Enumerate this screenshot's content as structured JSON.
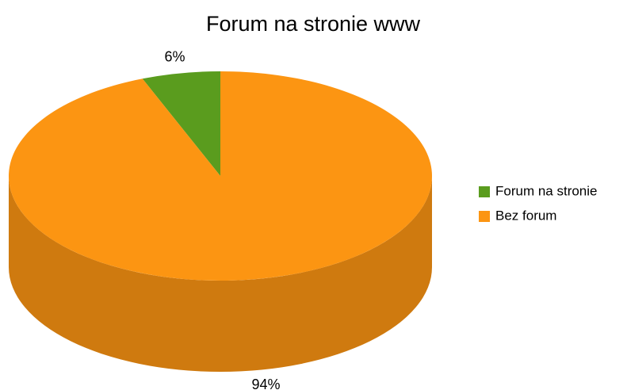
{
  "chart_data": {
    "type": "pie",
    "title": "Forum na stronie www",
    "categories": [
      "Forum na stronie",
      "Bez forum"
    ],
    "values": [
      6,
      94
    ],
    "value_labels": [
      "6%",
      "94%"
    ],
    "colors": [
      "#5a9c1e",
      "#fc9512"
    ],
    "legend": "right",
    "three_d": true
  }
}
